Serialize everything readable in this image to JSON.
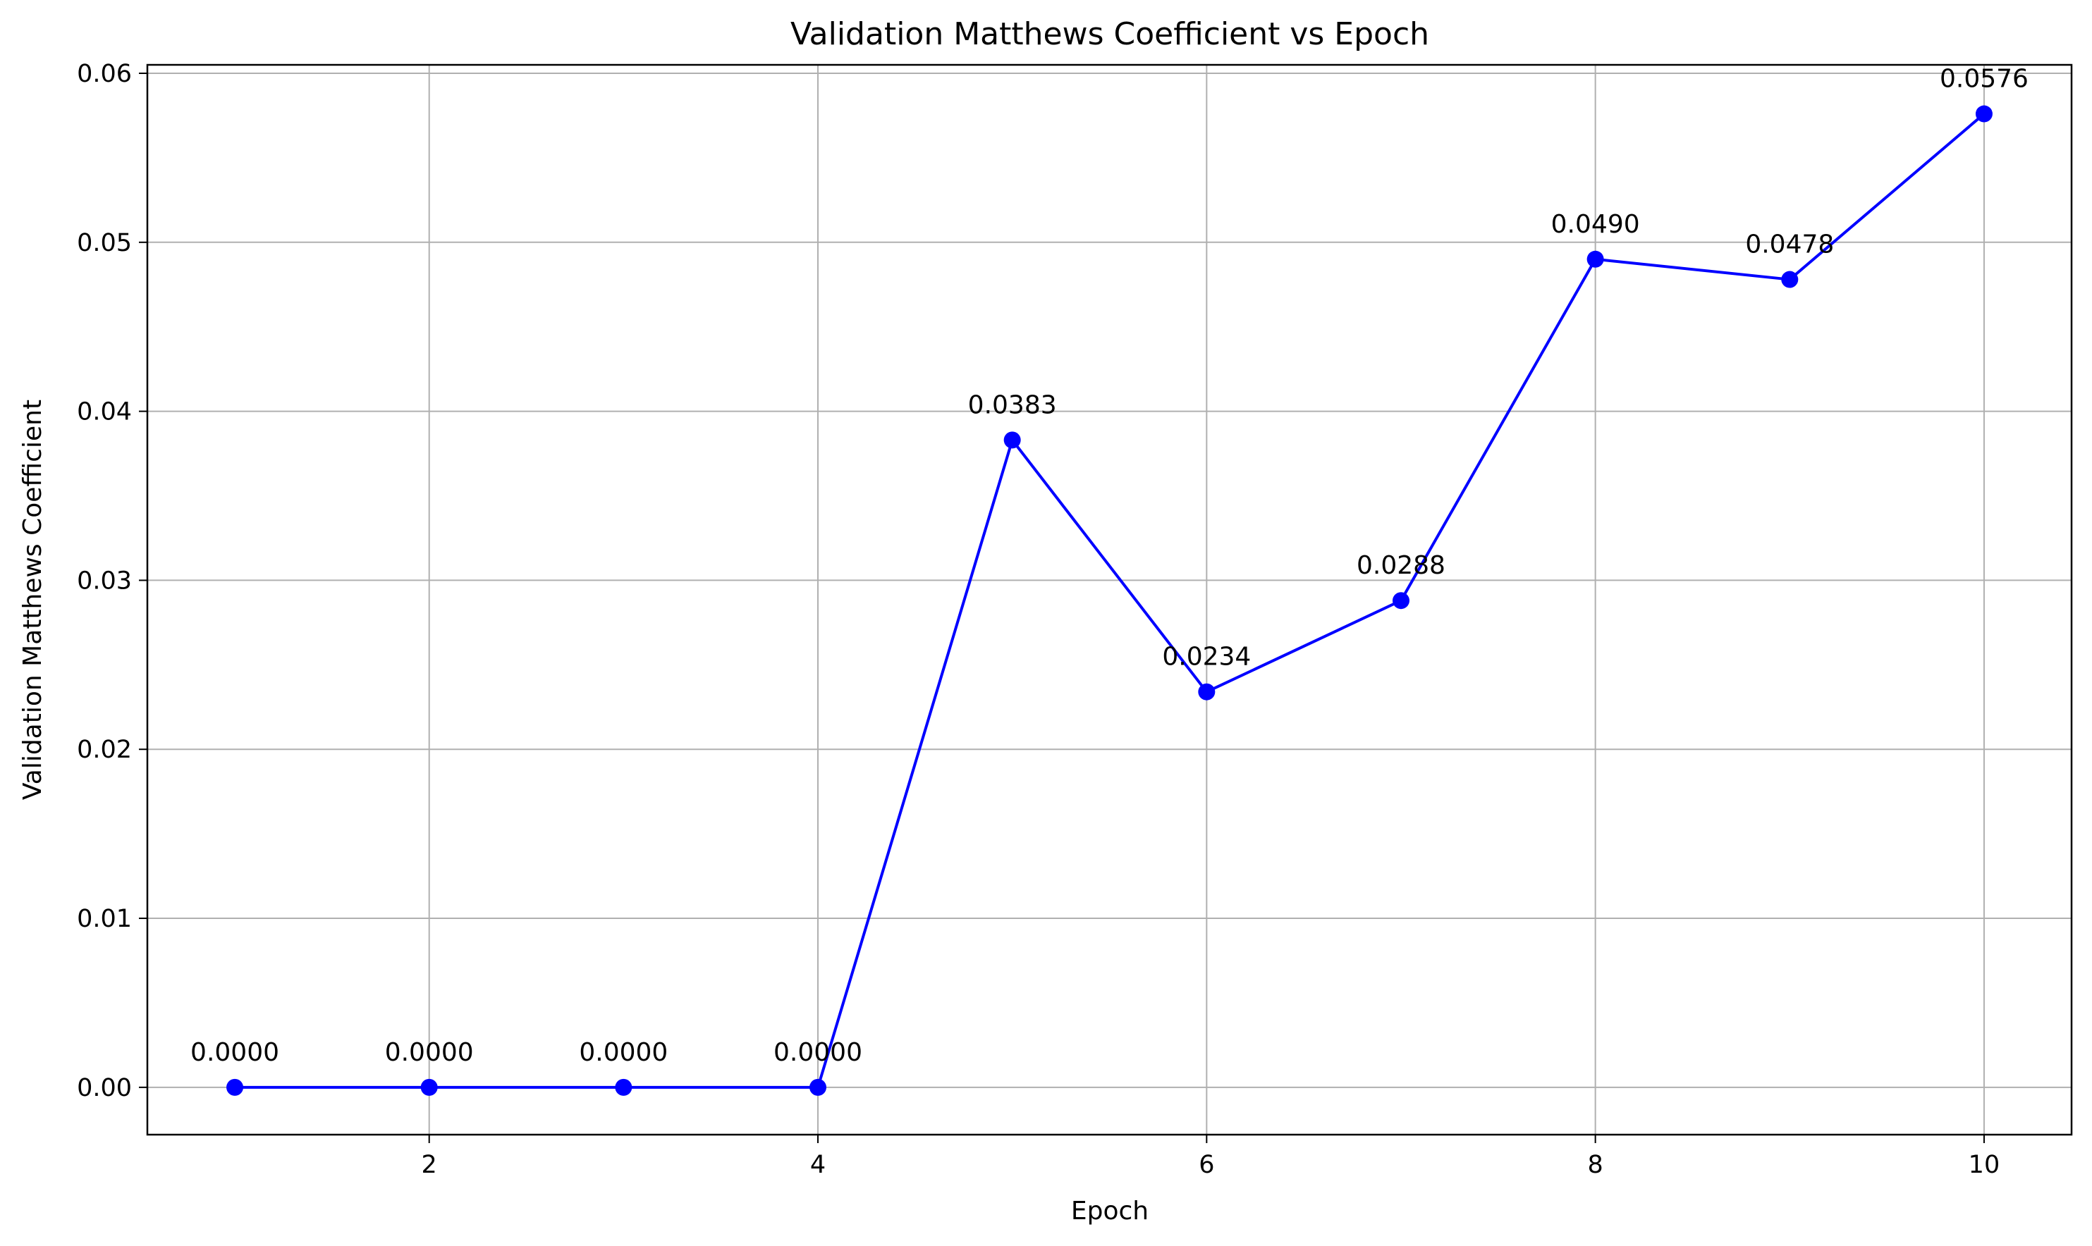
{
  "chart_data": {
    "type": "line",
    "title": "Validation Matthews Coefficient vs Epoch",
    "xlabel": "Epoch",
    "ylabel": "Validation Matthews Coefficient",
    "xlim": [
      0.55,
      10.45
    ],
    "ylim": [
      -0.0028,
      0.0605
    ],
    "xticks": [
      2,
      4,
      6,
      8,
      10
    ],
    "yticks": [
      0.0,
      0.01,
      0.02,
      0.03,
      0.04,
      0.05,
      0.06
    ],
    "ytick_labels": [
      "0.00",
      "0.01",
      "0.02",
      "0.03",
      "0.04",
      "0.05",
      "0.06"
    ],
    "grid": true,
    "legend": "none",
    "series": [
      {
        "color": "#0000ff",
        "marker": "circle",
        "x": [
          1,
          2,
          3,
          4,
          5,
          6,
          7,
          8,
          9,
          10
        ],
        "y": [
          0.0,
          0.0,
          0.0,
          0.0,
          0.0383,
          0.0234,
          0.0288,
          0.049,
          0.0478,
          0.0576
        ],
        "labels": [
          "0.0000",
          "0.0000",
          "0.0000",
          "0.0000",
          "0.0383",
          "0.0234",
          "0.0288",
          "0.0490",
          "0.0478",
          "0.0576"
        ]
      }
    ]
  }
}
